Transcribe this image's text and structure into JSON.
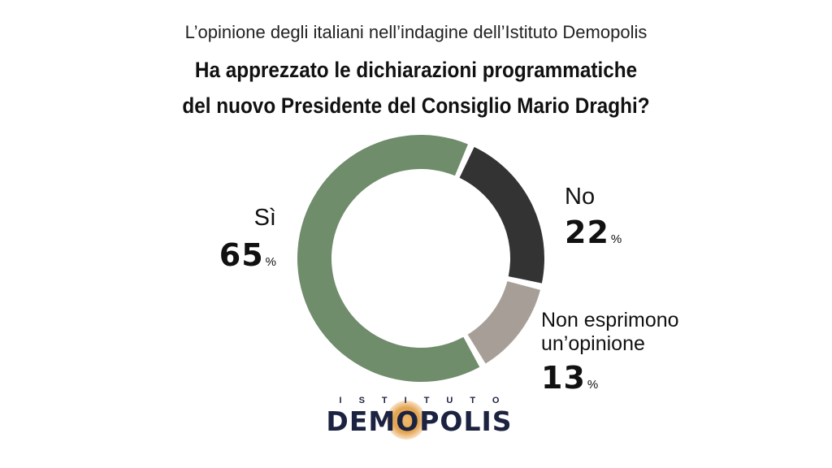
{
  "chart_data": {
    "type": "pie",
    "donut": true,
    "subtitle": "L’opinione degli italiani nell’indagine dell’Istituto Demopolis",
    "title_lines": [
      "Ha apprezzato le dichiarazioni programmatiche",
      "del nuovo Presidente del Consiglio Mario Draghi?"
    ],
    "slices": [
      {
        "label": "Sì",
        "value": 65,
        "display": "65",
        "color": "#6f8c6b"
      },
      {
        "label": "No",
        "value": 22,
        "display": "22",
        "color": "#333333"
      },
      {
        "label_lines": [
          "Non esprimono",
          "un’opinione"
        ],
        "value": 13,
        "display": "13",
        "color": "#a79f97"
      }
    ],
    "unit": "%",
    "legend": "none"
  },
  "logo": {
    "top": "ISTITUTO",
    "main": "DEMOPOLIS"
  }
}
